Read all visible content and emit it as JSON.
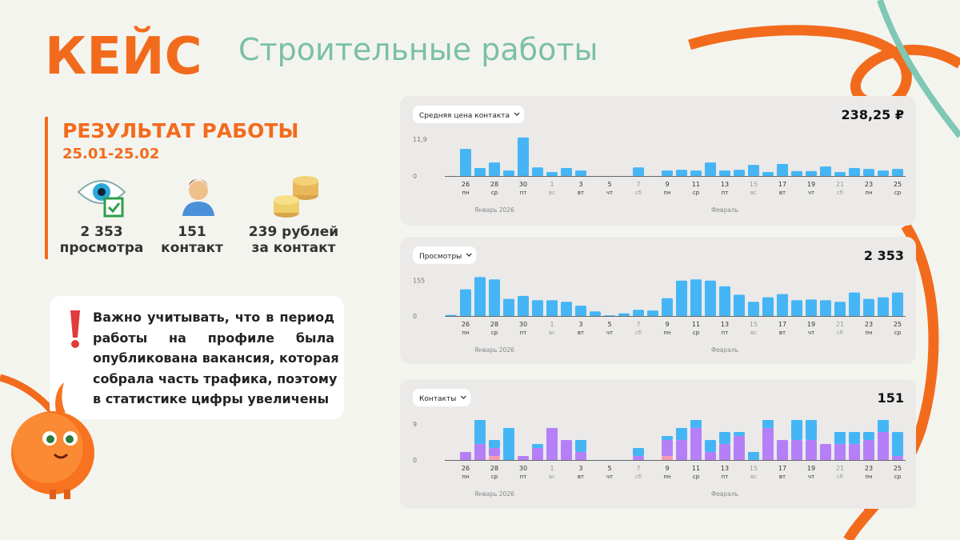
{
  "header": {
    "label": "КЕЙС",
    "title": "Строительные работы"
  },
  "results": {
    "title": "РЕЗУЛЬТАТ РАБОТЫ",
    "period": "25.01-25.02",
    "stats": [
      {
        "value": "2 353",
        "label": "просмотра"
      },
      {
        "value": "151",
        "label": "контакт"
      },
      {
        "value": "239 рублей",
        "label": "за контакт"
      }
    ]
  },
  "note": {
    "lines": [
      "Важно учитывать, что в период",
      "работы на профиле была",
      "опубликована вакансия, которая",
      "собрала часть трафика, поэтому",
      "в статистике цифры увеличены"
    ]
  },
  "chart_data": [
    {
      "type": "bar",
      "title": "Средняя цена контакта",
      "total": "238,25 ₽",
      "color": "#45b5f5",
      "grid": false,
      "categories": [
        null,
        "26",
        null,
        "28",
        null,
        "30",
        null,
        "1",
        null,
        "3",
        null,
        "5",
        null,
        "7",
        null,
        "9",
        null,
        "11",
        null,
        "13",
        null,
        "15",
        null,
        "17",
        null,
        "19",
        null,
        "21",
        null,
        "23",
        null,
        "25"
      ],
      "weekdays": [
        null,
        "пн",
        null,
        "ср",
        null,
        "пт",
        null,
        "вс",
        null,
        "вт",
        null,
        "чт",
        null,
        "сб",
        null,
        "пн",
        null,
        "ср",
        null,
        "пт",
        null,
        "вс",
        null,
        "вт",
        null,
        "чт",
        null,
        "сб",
        null,
        "пн",
        null,
        "ср"
      ],
      "months": [
        "Январь 2026",
        "Февраль"
      ],
      "values": [
        0,
        8.8,
        2.6,
        4.4,
        1.8,
        12.5,
        2.8,
        1.3,
        2.6,
        1.8,
        0,
        0,
        0,
        2.8,
        0,
        1.8,
        2,
        1.8,
        4.4,
        1.8,
        2,
        3.6,
        1.3,
        3.9,
        1.6,
        1.6,
        3.1,
        1.3,
        2.6,
        2.3,
        1.8,
        2.3
      ],
      "ylim": [
        0,
        13
      ],
      "yticks": [
        0,
        {
          "value": 11.9,
          "label": "11,9"
        }
      ]
    },
    {
      "type": "bar",
      "title": "Просмотры",
      "total": "2 353",
      "color": "#45b5f5",
      "grid": false,
      "categories": [
        null,
        "26",
        null,
        "28",
        null,
        "30",
        null,
        "1",
        null,
        "3",
        null,
        "5",
        null,
        "7",
        null,
        "9",
        null,
        "11",
        null,
        "13",
        null,
        "15",
        null,
        "17",
        null,
        "19",
        null,
        "21",
        null,
        "23",
        null,
        "25"
      ],
      "weekdays": [
        null,
        "пн",
        null,
        "ср",
        null,
        "пт",
        null,
        "вс",
        null,
        "вт",
        null,
        "чт",
        null,
        "сб",
        null,
        "пн",
        null,
        "ср",
        null,
        "пт",
        null,
        "вс",
        null,
        "вт",
        null,
        "чт",
        null,
        "сб",
        null,
        "пн",
        null,
        "ср"
      ],
      "months": [
        "Январь 2026",
        "Февраль"
      ],
      "values": [
        5,
        117,
        170,
        160,
        75,
        88,
        69,
        69,
        62,
        45,
        20,
        3,
        12,
        27,
        24,
        78,
        155,
        160,
        155,
        130,
        93,
        62,
        82,
        96,
        69,
        72,
        69,
        62,
        103,
        75,
        82,
        103
      ],
      "ylim": [
        0,
        175
      ],
      "yticks": [
        0,
        155
      ]
    },
    {
      "type": "stacked_bar",
      "title": "Контакты",
      "total": "151",
      "grid": false,
      "categories": [
        null,
        "26",
        null,
        "28",
        null,
        "30",
        null,
        "1",
        null,
        "3",
        null,
        "5",
        null,
        "7",
        null,
        "9",
        null,
        "11",
        null,
        "13",
        null,
        "15",
        null,
        "17",
        null,
        "19",
        null,
        "21",
        null,
        "23",
        null,
        "25"
      ],
      "weekdays": [
        null,
        "пн",
        null,
        "ср",
        null,
        "пт",
        null,
        "вс",
        null,
        "вт",
        null,
        "чт",
        null,
        "сб",
        null,
        "пн",
        null,
        "ср",
        null,
        "пт",
        null,
        "вс",
        null,
        "вт",
        null,
        "чт",
        null,
        "сб",
        null,
        "пн",
        null,
        "ср"
      ],
      "months": [
        "Январь 2026",
        "Февраль"
      ],
      "series": [
        {
          "color": "#f79bb3",
          "values": [
            0,
            0,
            0,
            1,
            0,
            0,
            0,
            0,
            0,
            0,
            0,
            0,
            0,
            0,
            0,
            1,
            0,
            0,
            0,
            0,
            0,
            0,
            0,
            0,
            0,
            0,
            0,
            0,
            0,
            0,
            0,
            0
          ]
        },
        {
          "color": "#b57ff7",
          "values": [
            0,
            2,
            4,
            2,
            0,
            1,
            3,
            8,
            5,
            2,
            0,
            0,
            0,
            1,
            0,
            4,
            5,
            8,
            2,
            4,
            6,
            0,
            8,
            5,
            5,
            5,
            4,
            4,
            4,
            5,
            7,
            1
          ]
        },
        {
          "color": "#45b5f5",
          "values": [
            0,
            0,
            6,
            2,
            8,
            0,
            1,
            0,
            0,
            3,
            0,
            0,
            0,
            2,
            0,
            1,
            3,
            2,
            3,
            3,
            1,
            2,
            2,
            0,
            5,
            5,
            0,
            3,
            3,
            2,
            3,
            6
          ]
        }
      ],
      "ylim": [
        0,
        10
      ],
      "yticks": [
        0,
        9
      ]
    }
  ]
}
